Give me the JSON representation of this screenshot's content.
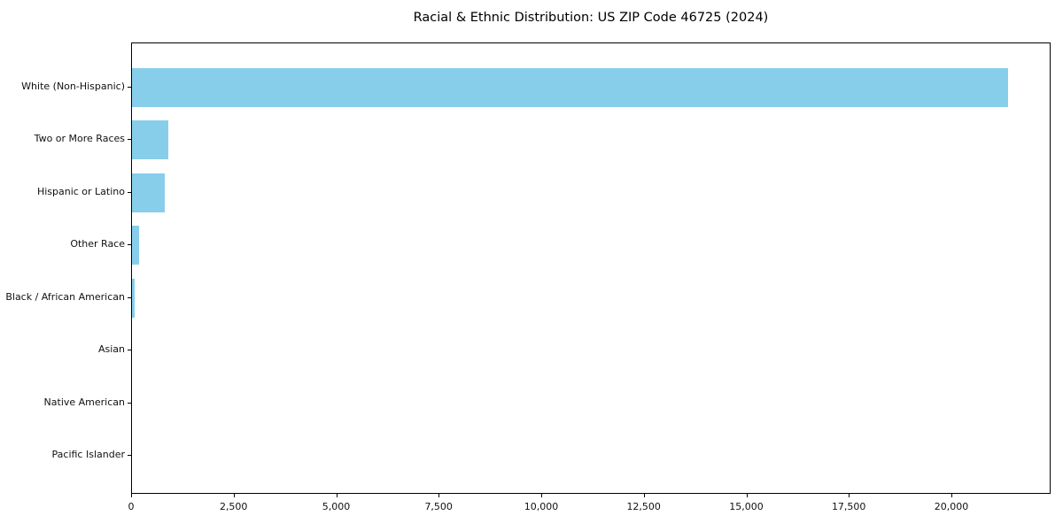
{
  "title": "Racial & Ethnic Distribution: US ZIP Code 46725 (2024)",
  "chart_data": {
    "type": "bar",
    "orientation": "horizontal",
    "title": "Racial & Ethnic Distribution: US ZIP Code 46725 (2024)",
    "categories": [
      "White (Non-Hispanic)",
      "Two or More Races",
      "Hispanic or Latino",
      "Other Race",
      "Black / African American",
      "Asian",
      "Native American",
      "Pacific Islander"
    ],
    "values": [
      21350,
      880,
      800,
      170,
      60,
      0,
      0,
      0
    ],
    "xlabel": "",
    "ylabel": "",
    "xlim": [
      0,
      22420
    ],
    "x_ticks": [
      0,
      2500,
      5000,
      7500,
      10000,
      12500,
      15000,
      17500,
      20000
    ],
    "x_tick_labels": [
      "0",
      "2,500",
      "5,000",
      "7,500",
      "10,000",
      "12,500",
      "15,000",
      "17,500",
      "20,000"
    ],
    "bar_color": "#87CEEB",
    "spine_color": "#000000",
    "grid": false,
    "legend_position": "none"
  }
}
